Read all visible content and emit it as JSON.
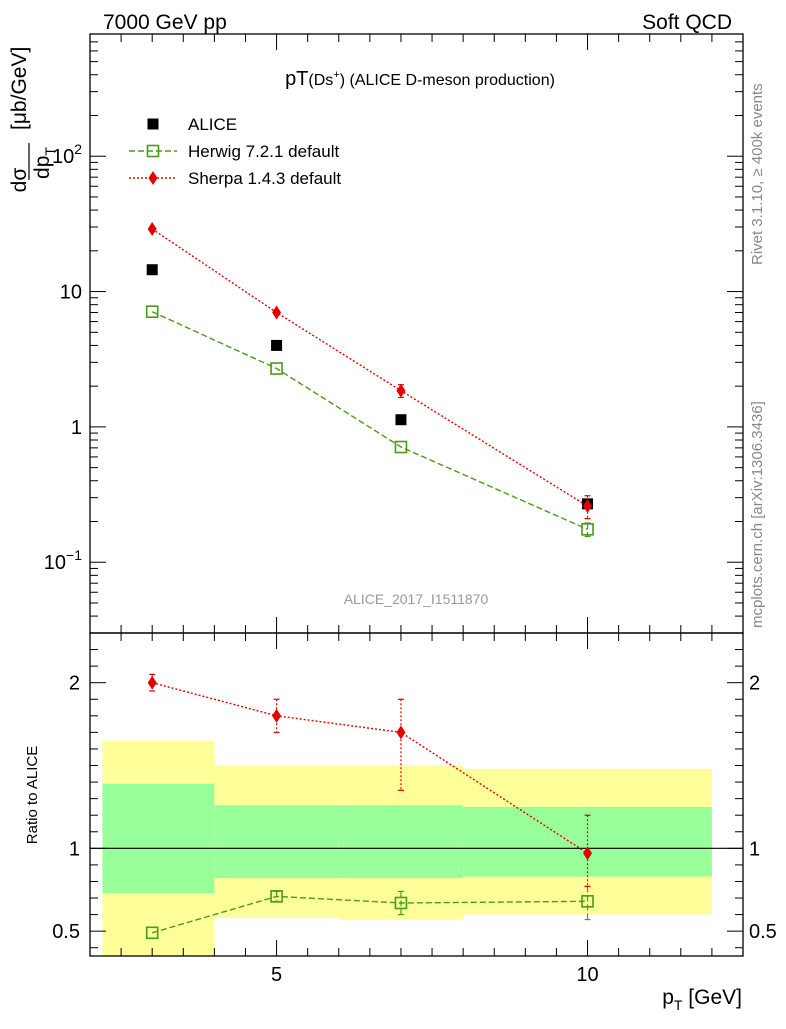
{
  "header": {
    "left": "7000 GeV pp",
    "right": "Soft QCD"
  },
  "side_text": {
    "top": "Rivet 3.1.10, ≥ 400k events",
    "bottom": "mcplots.cern.ch [arXiv:1306.3436]"
  },
  "watermark": "ALICE_2017_I1511870",
  "chart_data": [
    {
      "type": "scatter",
      "panel": "main",
      "title": {
        "prefix": "pT",
        "particle": "(Ds",
        "superscript": "+",
        "close": ")",
        "suffix": " (ALICE D-meson production)"
      },
      "ylabel": {
        "numerator": "dσ",
        "denominator_main": "dp",
        "denominator_sub": "T",
        "units": "[μb/GeV]"
      },
      "y_scale": "log",
      "xlim": [
        2,
        12.5
      ],
      "ylim": [
        0.03,
        800
      ],
      "y_ticks": [
        {
          "value": 0.1,
          "base": "10",
          "exp": "−1"
        },
        {
          "value": 1,
          "base": "1",
          "exp": ""
        },
        {
          "value": 10,
          "base": "10",
          "exp": ""
        },
        {
          "value": 100,
          "base": "10",
          "exp": "2"
        }
      ],
      "legend_position": "top-left",
      "series": [
        {
          "name": "ALICE",
          "style": "filled-square",
          "color": "#000000",
          "points": [
            {
              "x": 3,
              "y": 14.5
            },
            {
              "x": 5,
              "y": 4.0
            },
            {
              "x": 7,
              "y": 1.13
            },
            {
              "x": 10,
              "y": 0.27
            }
          ]
        },
        {
          "name": "Herwig 7.2.1 default",
          "style": "open-square-dashed",
          "color": "#4a9a1b",
          "points": [
            {
              "x": 3,
              "y": 7.1
            },
            {
              "x": 5,
              "y": 2.7
            },
            {
              "x": 7,
              "y": 0.71
            },
            {
              "x": 10,
              "y": 0.175,
              "err": [
                0.155,
                0.195
              ]
            }
          ]
        },
        {
          "name": "Sherpa 1.4.3 default",
          "style": "filled-diamond-dotted",
          "color": "#e50000",
          "points": [
            {
              "x": 3,
              "y": 29
            },
            {
              "x": 5,
              "y": 7.0
            },
            {
              "x": 7,
              "y": 1.85,
              "err": [
                1.65,
                2.05
              ]
            },
            {
              "x": 10,
              "y": 0.26,
              "err": [
                0.21,
                0.31
              ]
            }
          ]
        }
      ]
    },
    {
      "type": "scatter",
      "panel": "ratio",
      "ylabel": "Ratio to ALICE",
      "xlabel": {
        "main": "p",
        "sub": "T",
        "units": " [GeV]"
      },
      "xlim": [
        2,
        12.5
      ],
      "ylim": [
        0.35,
        2.3
      ],
      "x_ticks": [
        {
          "value": 5,
          "label": "5"
        },
        {
          "value": 10,
          "label": "10"
        }
      ],
      "y_ticks": [
        {
          "value": 0.5,
          "label": "0.5"
        },
        {
          "value": 1,
          "label": "1"
        },
        {
          "value": 2,
          "label": "2"
        }
      ],
      "bands": [
        {
          "x0": 2.2,
          "x1": 4.0,
          "yellow": [
            0.35,
            1.65
          ],
          "green": [
            0.73,
            1.39
          ]
        },
        {
          "x0": 4.0,
          "x1": 6.0,
          "yellow": [
            0.58,
            1.5
          ],
          "green": [
            0.82,
            1.26
          ]
        },
        {
          "x0": 6.0,
          "x1": 8.0,
          "yellow": [
            0.57,
            1.5
          ],
          "green": [
            0.82,
            1.26
          ]
        },
        {
          "x0": 8.0,
          "x1": 12.0,
          "yellow": [
            0.6,
            1.48
          ],
          "green": [
            0.83,
            1.25
          ]
        }
      ],
      "series": [
        {
          "name": "Herwig 7.2.1 default",
          "style": "open-square-dashed",
          "color": "#4a9a1b",
          "points": [
            {
              "x": 3,
              "y": 0.49
            },
            {
              "x": 5,
              "y": 0.71,
              "err": [
                0.68,
                0.74
              ]
            },
            {
              "x": 7,
              "y": 0.67,
              "err": [
                0.6,
                0.74
              ]
            },
            {
              "x": 10,
              "y": 0.68,
              "err": [
                0.57,
                0.77
              ]
            }
          ]
        },
        {
          "name": "Sherpa 1.4.3 default",
          "style": "filled-diamond-dotted",
          "color": "#e50000",
          "points": [
            {
              "x": 3,
              "y": 2.0,
              "err": [
                1.95,
                2.05
              ]
            },
            {
              "x": 5,
              "y": 1.8,
              "err": [
                1.7,
                1.9
              ]
            },
            {
              "x": 7,
              "y": 1.7,
              "err": [
                1.35,
                1.9
              ]
            },
            {
              "x": 10,
              "y": 0.97,
              "err": [
                0.77,
                1.2
              ]
            }
          ]
        }
      ]
    }
  ]
}
